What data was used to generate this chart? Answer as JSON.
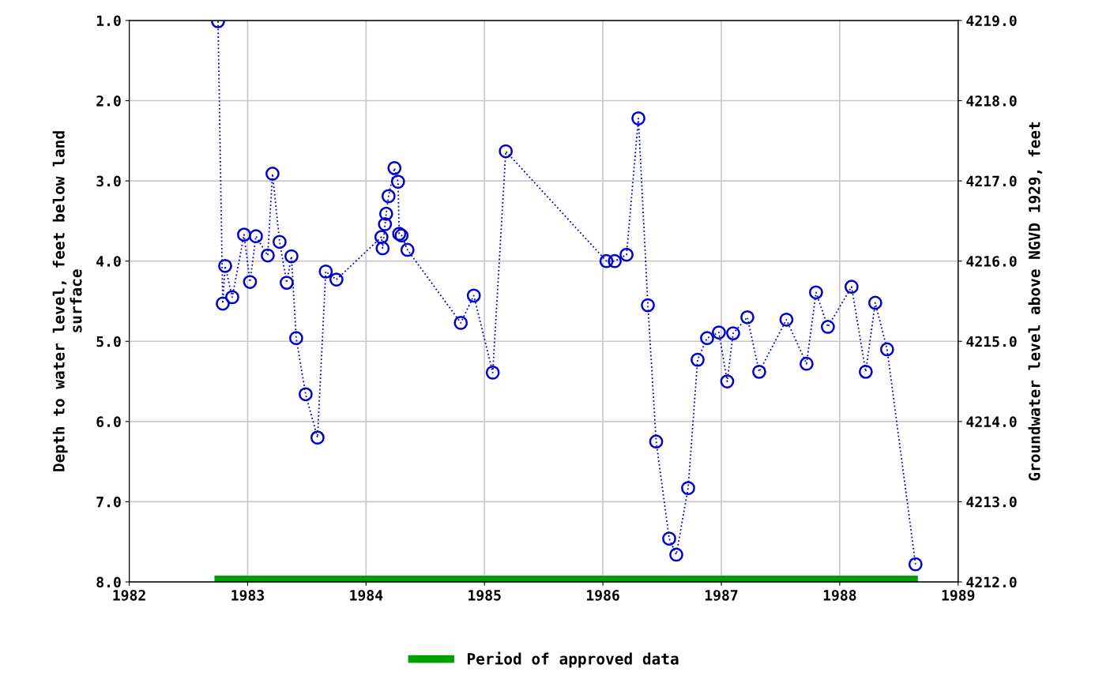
{
  "chart_data": {
    "type": "line",
    "ylabel": "Depth to water level, feet below land\nsurface",
    "y2label": "Groundwater level above NGVD 1929, feet",
    "xlim": [
      1982,
      1989
    ],
    "xticks": [
      1982,
      1983,
      1984,
      1985,
      1986,
      1987,
      1988,
      1989
    ],
    "ylim": [
      8.0,
      1.0
    ],
    "yticks": [
      {
        "value": 1,
        "label": "1.0"
      },
      {
        "value": 2,
        "label": "2.0"
      },
      {
        "value": 3,
        "label": "3.0"
      },
      {
        "value": 4,
        "label": "4.0"
      },
      {
        "value": 5,
        "label": "5.0"
      },
      {
        "value": 6,
        "label": "6.0"
      },
      {
        "value": 7,
        "label": "7.0"
      },
      {
        "value": 8,
        "label": "8.0"
      }
    ],
    "y2lim": [
      4212,
      4219
    ],
    "y2ticks": [
      {
        "value": 4212,
        "label": "4212.0"
      },
      {
        "value": 4213,
        "label": "4213.0"
      },
      {
        "value": 4214,
        "label": "4214.0"
      },
      {
        "value": 4215,
        "label": "4215.0"
      },
      {
        "value": 4216,
        "label": "4216.0"
      },
      {
        "value": 4217,
        "label": "4217.0"
      },
      {
        "value": 4218,
        "label": "4218.0"
      },
      {
        "value": 4219,
        "label": "4219.0"
      }
    ],
    "grid": true,
    "legend": "bottom",
    "series": [
      {
        "color": "#0000cc",
        "marker": "circle",
        "line_style": "dotted",
        "x": [
          1982.75,
          1982.79,
          1982.81,
          1982.87,
          1982.97,
          1983.02,
          1983.07,
          1983.17,
          1983.21,
          1983.27,
          1983.33,
          1983.37,
          1983.41,
          1983.49,
          1983.59,
          1983.66,
          1983.75,
          1984.13,
          1984.14,
          1984.16,
          1984.17,
          1984.19,
          1984.24,
          1984.27,
          1984.28,
          1984.3,
          1984.35,
          1984.8,
          1984.91,
          1985.07,
          1985.18,
          1986.03,
          1986.1,
          1986.2,
          1986.3,
          1986.38,
          1986.45,
          1986.56,
          1986.62,
          1986.72,
          1986.8,
          1986.88,
          1986.98,
          1987.05,
          1987.1,
          1987.22,
          1987.32,
          1987.55,
          1987.72,
          1987.8,
          1987.9,
          1988.1,
          1988.22,
          1988.3,
          1988.4,
          1988.64
        ],
        "values": [
          1.01,
          4.53,
          4.06,
          4.45,
          3.67,
          4.26,
          3.69,
          3.93,
          2.91,
          3.76,
          4.27,
          3.94,
          4.96,
          5.66,
          6.2,
          4.13,
          4.23,
          3.7,
          3.84,
          3.54,
          3.41,
          3.19,
          2.84,
          3.01,
          3.66,
          3.68,
          3.86,
          4.77,
          4.43,
          5.39,
          2.63,
          4.0,
          4.0,
          3.92,
          2.22,
          4.55,
          6.25,
          7.46,
          7.66,
          6.83,
          5.23,
          4.96,
          4.89,
          5.5,
          4.9,
          4.7,
          5.38,
          4.73,
          5.28,
          4.39,
          4.82,
          4.32,
          5.38,
          4.52,
          5.1,
          7.78
        ]
      },
      {
        "name": "Period of approved data",
        "color": "#00a000",
        "marker": "none",
        "line_style": "solid",
        "x": [
          1982.72,
          1988.66
        ],
        "values": [
          7.97,
          7.97
        ]
      }
    ]
  }
}
